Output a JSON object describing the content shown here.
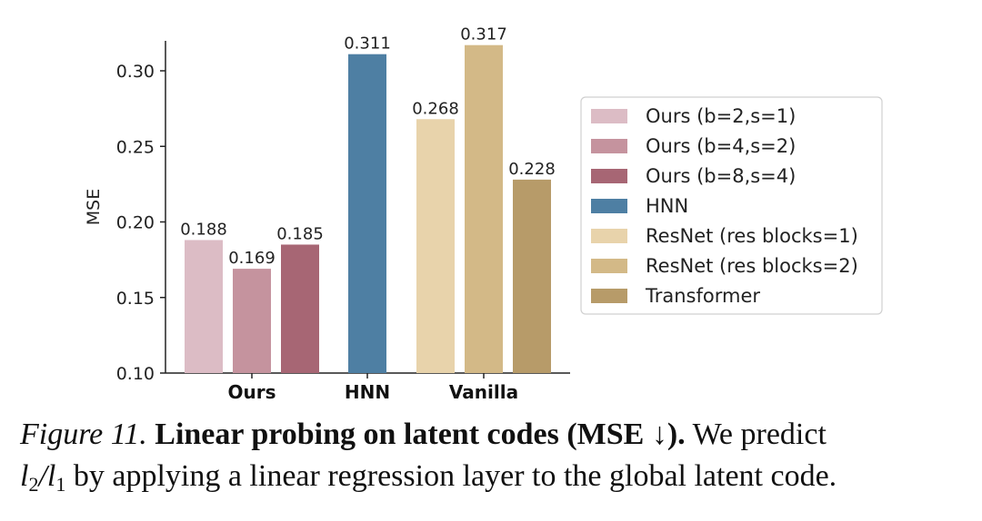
{
  "chart_data": {
    "type": "bar",
    "ylabel": "MSE",
    "ylim": [
      0.1,
      0.32
    ],
    "yticks": [
      "0.10",
      "0.15",
      "0.20",
      "0.25",
      "0.30"
    ],
    "groups": [
      "Ours",
      "HNN",
      "Vanilla"
    ],
    "bars": [
      {
        "series": "Ours (b=2,s=1)",
        "group": "Ours",
        "value": 0.188,
        "label": "0.188"
      },
      {
        "series": "Ours (b=4,s=2)",
        "group": "Ours",
        "value": 0.169,
        "label": "0.169"
      },
      {
        "series": "Ours (b=8,s=4)",
        "group": "Ours",
        "value": 0.185,
        "label": "0.185"
      },
      {
        "series": "HNN",
        "group": "HNN",
        "value": 0.311,
        "label": "0.311"
      },
      {
        "series": "ResNet (res blocks=1)",
        "group": "Vanilla",
        "value": 0.268,
        "label": "0.268"
      },
      {
        "series": "ResNet (res blocks=2)",
        "group": "Vanilla",
        "value": 0.317,
        "label": "0.317"
      },
      {
        "series": "Transformer",
        "group": "Vanilla",
        "value": 0.228,
        "label": "0.228"
      }
    ],
    "legend": {
      "placement": "right",
      "entries": [
        {
          "label": "Ours (b=2,s=1)",
          "color": "#dcbcc5"
        },
        {
          "label": "Ours (b=4,s=2)",
          "color": "#c5939e"
        },
        {
          "label": "Ours (b=8,s=4)",
          "color": "#a76674"
        },
        {
          "label": "HNN",
          "color": "#4e7fa3"
        },
        {
          "label": "ResNet (res blocks=1)",
          "color": "#e8d3ab"
        },
        {
          "label": "ResNet (res blocks=2)",
          "color": "#d3b987"
        },
        {
          "label": "Transformer",
          "color": "#b79b69"
        }
      ]
    }
  },
  "caption": {
    "figure": "Figure 11.",
    "title": "Linear probing on latent codes (MSE ↓).",
    "text1": "We predict",
    "math_l2": "l",
    "math_sub2": "2",
    "math_slash": "/",
    "math_l1": "l",
    "math_sub1": "1",
    "text2": "by applying a linear regression layer to the global latent code."
  }
}
